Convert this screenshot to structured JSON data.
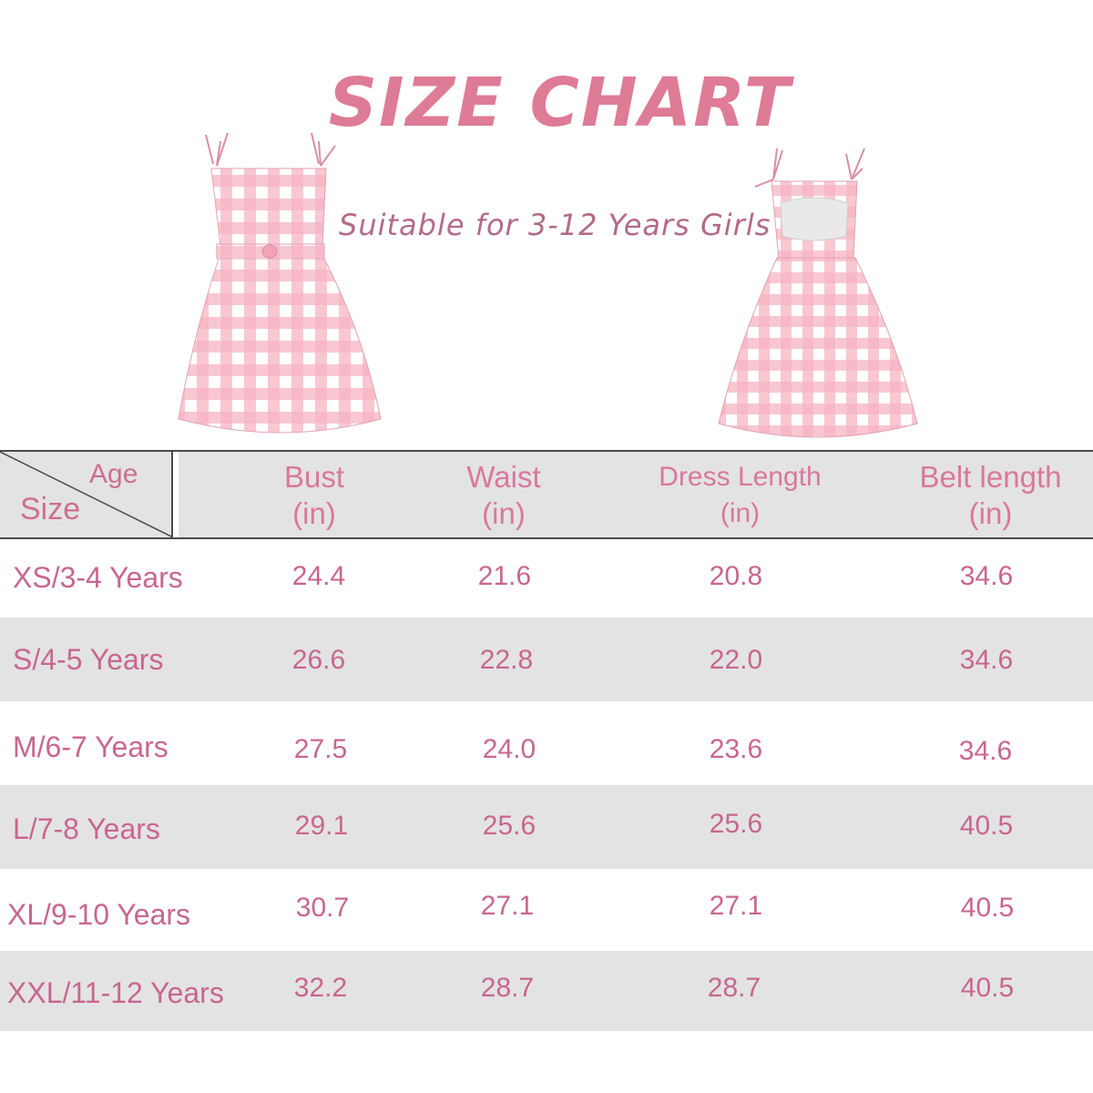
{
  "title": "SIZE CHART",
  "subtitle": "Suitable for 3-12 Years Girls",
  "table": {
    "corner_age": "Age",
    "corner_size": "Size",
    "columns": [
      {
        "name": "Bust",
        "unit": "(in)"
      },
      {
        "name": "Waist",
        "unit": "(in)"
      },
      {
        "name": "Dress Length",
        "unit": "(in)"
      },
      {
        "name": "Belt length",
        "unit": "(in)"
      }
    ],
    "rows": [
      {
        "size": "XS/3-4 Years",
        "bust": "24.4",
        "waist": "21.6",
        "length": "20.8",
        "belt": "34.6"
      },
      {
        "size": "S/4-5 Years",
        "bust": "26.6",
        "waist": "22.8",
        "length": "22.0",
        "belt": "34.6"
      },
      {
        "size": "M/6-7 Years",
        "bust": "27.5",
        "waist": "24.0",
        "length": "23.6",
        "belt": "34.6"
      },
      {
        "size": "L/7-8 Years",
        "bust": "29.1",
        "waist": "25.6",
        "length": "25.6",
        "belt": "40.5"
      },
      {
        "size": "XL/9-10 Years",
        "bust": "30.7",
        "waist": "27.1",
        "length": "27.1",
        "belt": "40.5"
      },
      {
        "size": "XXL/11-12 Years",
        "bust": "32.2",
        "waist": "28.7",
        "length": "28.7",
        "belt": "40.5"
      }
    ]
  },
  "colors": {
    "title": "#de7b96",
    "text": "#c86690",
    "row_shade": "#e3e3e3",
    "gingham": "#f4a9b8"
  }
}
